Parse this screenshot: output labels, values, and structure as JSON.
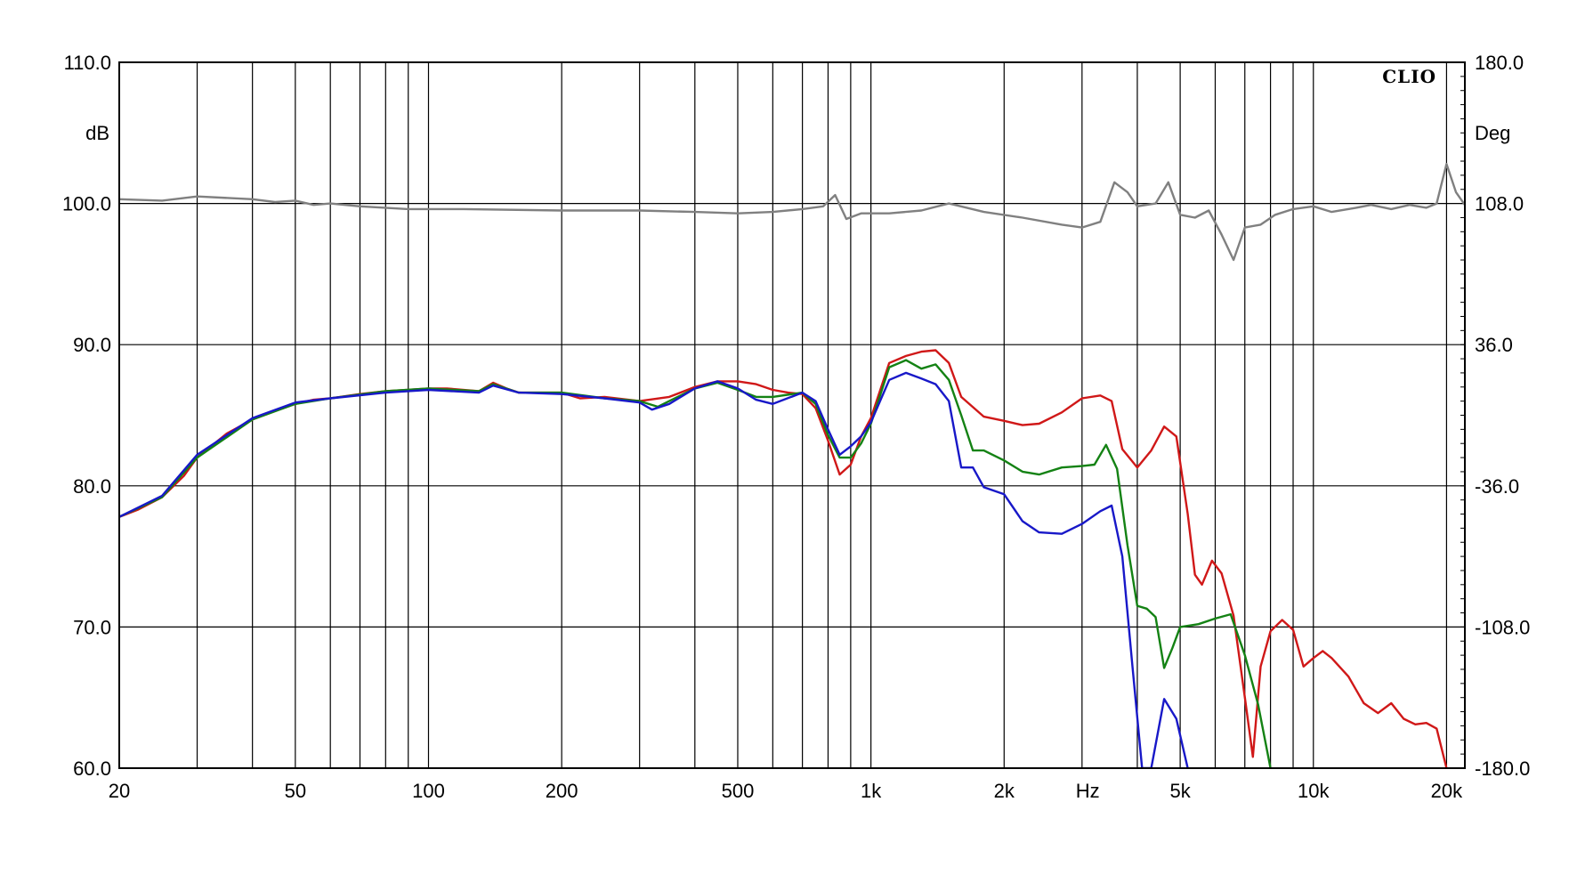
{
  "chart_data": {
    "type": "line",
    "brand": "CLIO",
    "y_left_unit": "dB",
    "y_right_unit": "Deg",
    "x_unit": "Hz",
    "x_scale": "log",
    "xlim": [
      20,
      22000
    ],
    "ylim": [
      60,
      110
    ],
    "y_right_lim": [
      -180,
      180
    ],
    "grid": true,
    "x_ticks": [
      {
        "value": 20,
        "label": "20"
      },
      {
        "value": 50,
        "label": "50"
      },
      {
        "value": 100,
        "label": "100"
      },
      {
        "value": 200,
        "label": "200"
      },
      {
        "value": 500,
        "label": "500"
      },
      {
        "value": 1000,
        "label": "1k"
      },
      {
        "value": 2000,
        "label": "2k"
      },
      {
        "value": 5000,
        "label": "5k"
      },
      {
        "value": 10000,
        "label": "10k"
      },
      {
        "value": 20000,
        "label": "20k"
      }
    ],
    "x_gridlines": [
      20,
      30,
      40,
      50,
      60,
      70,
      80,
      90,
      100,
      200,
      300,
      400,
      500,
      600,
      700,
      800,
      900,
      1000,
      2000,
      3000,
      4000,
      5000,
      6000,
      7000,
      8000,
      9000,
      10000,
      20000
    ],
    "y_left_ticks": [
      {
        "value": 110,
        "label": "110.0"
      },
      {
        "value": 100,
        "label": "100.0"
      },
      {
        "value": 90,
        "label": "90.0"
      },
      {
        "value": 80,
        "label": "80.0"
      },
      {
        "value": 70,
        "label": "70.0"
      },
      {
        "value": 60,
        "label": "60.0"
      }
    ],
    "y_right_ticks": [
      {
        "value": 180,
        "label": "180.0"
      },
      {
        "value": 108,
        "label": "108.0"
      },
      {
        "value": 36,
        "label": "36.0"
      },
      {
        "value": -36,
        "label": "-36.0"
      },
      {
        "value": -108,
        "label": "-108.0"
      },
      {
        "value": -180,
        "label": "-180.0"
      }
    ],
    "series": [
      {
        "axis": "left",
        "color": "#808080",
        "points": [
          [
            20,
            100.3
          ],
          [
            25,
            100.2
          ],
          [
            30,
            100.5
          ],
          [
            40,
            100.3
          ],
          [
            45,
            100.1
          ],
          [
            50,
            100.2
          ],
          [
            55,
            99.9
          ],
          [
            60,
            100.0
          ],
          [
            70,
            99.8
          ],
          [
            90,
            99.6
          ],
          [
            120,
            99.6
          ],
          [
            200,
            99.5
          ],
          [
            300,
            99.5
          ],
          [
            400,
            99.4
          ],
          [
            500,
            99.3
          ],
          [
            600,
            99.4
          ],
          [
            700,
            99.6
          ],
          [
            780,
            99.8
          ],
          [
            830,
            100.6
          ],
          [
            880,
            98.9
          ],
          [
            950,
            99.3
          ],
          [
            1100,
            99.3
          ],
          [
            1300,
            99.5
          ],
          [
            1500,
            100.0
          ],
          [
            1800,
            99.4
          ],
          [
            2200,
            99.0
          ],
          [
            2700,
            98.5
          ],
          [
            3000,
            98.3
          ],
          [
            3300,
            98.7
          ],
          [
            3550,
            101.5
          ],
          [
            3800,
            100.8
          ],
          [
            4000,
            99.8
          ],
          [
            4400,
            100.0
          ],
          [
            4700,
            101.5
          ],
          [
            5000,
            99.2
          ],
          [
            5400,
            99.0
          ],
          [
            5800,
            99.5
          ],
          [
            6200,
            97.8
          ],
          [
            6600,
            96.0
          ],
          [
            7000,
            98.3
          ],
          [
            7600,
            98.5
          ],
          [
            8200,
            99.2
          ],
          [
            9000,
            99.6
          ],
          [
            10000,
            99.8
          ],
          [
            11000,
            99.4
          ],
          [
            12500,
            99.7
          ],
          [
            13500,
            99.9
          ],
          [
            15000,
            99.6
          ],
          [
            16500,
            99.9
          ],
          [
            18000,
            99.7
          ],
          [
            19000,
            100.0
          ],
          [
            20000,
            102.8
          ],
          [
            21000,
            100.8
          ],
          [
            22000,
            99.9
          ]
        ]
      },
      {
        "axis": "left",
        "color": "#d01818",
        "points": [
          [
            20,
            77.8
          ],
          [
            22,
            78.3
          ],
          [
            25,
            79.2
          ],
          [
            28,
            80.7
          ],
          [
            30,
            82.0
          ],
          [
            35,
            83.7
          ],
          [
            40,
            84.7
          ],
          [
            45,
            85.3
          ],
          [
            50,
            85.8
          ],
          [
            55,
            86.1
          ],
          [
            60,
            86.2
          ],
          [
            70,
            86.5
          ],
          [
            80,
            86.7
          ],
          [
            90,
            86.8
          ],
          [
            100,
            86.9
          ],
          [
            110,
            86.9
          ],
          [
            130,
            86.7
          ],
          [
            140,
            87.3
          ],
          [
            150,
            86.9
          ],
          [
            160,
            86.6
          ],
          [
            200,
            86.6
          ],
          [
            220,
            86.2
          ],
          [
            250,
            86.3
          ],
          [
            300,
            86.0
          ],
          [
            350,
            86.3
          ],
          [
            400,
            87.0
          ],
          [
            450,
            87.4
          ],
          [
            500,
            87.4
          ],
          [
            550,
            87.2
          ],
          [
            600,
            86.8
          ],
          [
            650,
            86.6
          ],
          [
            700,
            86.5
          ],
          [
            750,
            85.5
          ],
          [
            800,
            83.2
          ],
          [
            850,
            80.8
          ],
          [
            900,
            81.5
          ],
          [
            950,
            83.5
          ],
          [
            1000,
            84.8
          ],
          [
            1100,
            88.7
          ],
          [
            1200,
            89.2
          ],
          [
            1300,
            89.5
          ],
          [
            1400,
            89.6
          ],
          [
            1500,
            88.7
          ],
          [
            1600,
            86.3
          ],
          [
            1800,
            84.9
          ],
          [
            2000,
            84.6
          ],
          [
            2200,
            84.3
          ],
          [
            2400,
            84.4
          ],
          [
            2700,
            85.2
          ],
          [
            3000,
            86.2
          ],
          [
            3300,
            86.4
          ],
          [
            3500,
            86.0
          ],
          [
            3700,
            82.6
          ],
          [
            4000,
            81.3
          ],
          [
            4300,
            82.5
          ],
          [
            4600,
            84.2
          ],
          [
            4900,
            83.5
          ],
          [
            5200,
            78.0
          ],
          [
            5400,
            73.7
          ],
          [
            5600,
            73.0
          ],
          [
            5900,
            74.7
          ],
          [
            6200,
            73.8
          ],
          [
            6600,
            70.8
          ],
          [
            7000,
            65.0
          ],
          [
            7300,
            60.8
          ],
          [
            7600,
            67.2
          ],
          [
            8000,
            69.7
          ],
          [
            8500,
            70.5
          ],
          [
            9000,
            69.8
          ],
          [
            9500,
            67.2
          ],
          [
            10000,
            67.8
          ],
          [
            10500,
            68.3
          ],
          [
            11000,
            67.8
          ],
          [
            12000,
            66.5
          ],
          [
            13000,
            64.6
          ],
          [
            14000,
            63.9
          ],
          [
            15000,
            64.6
          ],
          [
            16000,
            63.5
          ],
          [
            17000,
            63.1
          ],
          [
            18000,
            63.2
          ],
          [
            19000,
            62.8
          ],
          [
            20000,
            60.0
          ]
        ]
      },
      {
        "axis": "left",
        "color": "#148214",
        "points": [
          [
            20,
            77.8
          ],
          [
            25,
            79.2
          ],
          [
            30,
            82.0
          ],
          [
            40,
            84.7
          ],
          [
            50,
            85.8
          ],
          [
            60,
            86.2
          ],
          [
            80,
            86.7
          ],
          [
            100,
            86.9
          ],
          [
            130,
            86.7
          ],
          [
            140,
            87.2
          ],
          [
            160,
            86.6
          ],
          [
            200,
            86.6
          ],
          [
            250,
            86.2
          ],
          [
            300,
            86.0
          ],
          [
            330,
            85.6
          ],
          [
            350,
            86.0
          ],
          [
            400,
            86.9
          ],
          [
            450,
            87.3
          ],
          [
            500,
            86.8
          ],
          [
            550,
            86.3
          ],
          [
            600,
            86.3
          ],
          [
            700,
            86.6
          ],
          [
            750,
            85.8
          ],
          [
            800,
            83.6
          ],
          [
            850,
            82.0
          ],
          [
            900,
            82.0
          ],
          [
            950,
            83.0
          ],
          [
            1000,
            84.4
          ],
          [
            1100,
            88.4
          ],
          [
            1200,
            88.9
          ],
          [
            1300,
            88.3
          ],
          [
            1400,
            88.6
          ],
          [
            1500,
            87.5
          ],
          [
            1600,
            85.0
          ],
          [
            1700,
            82.5
          ],
          [
            1800,
            82.5
          ],
          [
            2000,
            81.8
          ],
          [
            2200,
            81.0
          ],
          [
            2400,
            80.8
          ],
          [
            2700,
            81.3
          ],
          [
            3000,
            81.4
          ],
          [
            3200,
            81.5
          ],
          [
            3400,
            82.9
          ],
          [
            3600,
            81.2
          ],
          [
            3800,
            75.8
          ],
          [
            4000,
            71.5
          ],
          [
            4200,
            71.3
          ],
          [
            4400,
            70.7
          ],
          [
            4600,
            67.1
          ],
          [
            4800,
            68.5
          ],
          [
            5000,
            70.0
          ],
          [
            5500,
            70.2
          ],
          [
            6000,
            70.6
          ],
          [
            6500,
            70.9
          ],
          [
            7000,
            68.0
          ],
          [
            7500,
            64.5
          ],
          [
            8000,
            60.0
          ]
        ]
      },
      {
        "axis": "left",
        "color": "#1818c8",
        "points": [
          [
            20,
            77.8
          ],
          [
            25,
            79.3
          ],
          [
            30,
            82.2
          ],
          [
            40,
            84.8
          ],
          [
            50,
            85.9
          ],
          [
            60,
            86.2
          ],
          [
            80,
            86.6
          ],
          [
            100,
            86.8
          ],
          [
            130,
            86.6
          ],
          [
            140,
            87.1
          ],
          [
            160,
            86.6
          ],
          [
            200,
            86.5
          ],
          [
            250,
            86.2
          ],
          [
            300,
            85.9
          ],
          [
            320,
            85.4
          ],
          [
            350,
            85.8
          ],
          [
            400,
            86.9
          ],
          [
            450,
            87.4
          ],
          [
            500,
            86.9
          ],
          [
            550,
            86.1
          ],
          [
            600,
            85.8
          ],
          [
            700,
            86.6
          ],
          [
            750,
            86.0
          ],
          [
            800,
            84.0
          ],
          [
            850,
            82.2
          ],
          [
            900,
            82.8
          ],
          [
            950,
            83.5
          ],
          [
            1000,
            84.5
          ],
          [
            1100,
            87.5
          ],
          [
            1200,
            88.0
          ],
          [
            1300,
            87.6
          ],
          [
            1400,
            87.2
          ],
          [
            1500,
            86.0
          ],
          [
            1600,
            81.3
          ],
          [
            1700,
            81.3
          ],
          [
            1800,
            79.9
          ],
          [
            2000,
            79.4
          ],
          [
            2200,
            77.5
          ],
          [
            2400,
            76.7
          ],
          [
            2700,
            76.6
          ],
          [
            3000,
            77.3
          ],
          [
            3300,
            78.2
          ],
          [
            3500,
            78.6
          ],
          [
            3700,
            75.0
          ],
          [
            3900,
            67.2
          ],
          [
            4100,
            60.0
          ],
          [
            4300,
            60.0
          ],
          [
            4600,
            64.9
          ],
          [
            4900,
            63.5
          ],
          [
            5200,
            60.0
          ]
        ]
      }
    ]
  }
}
